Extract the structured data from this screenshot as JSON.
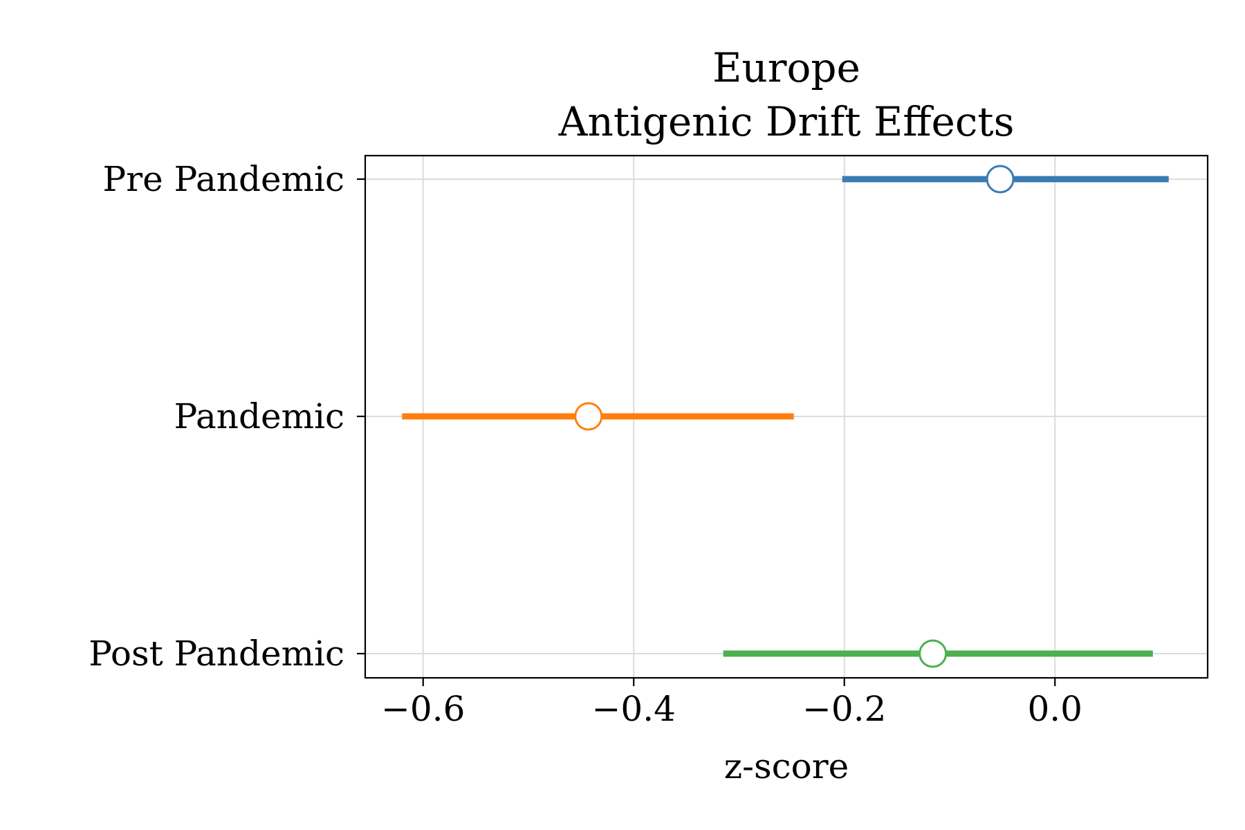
{
  "chart_data": {
    "type": "forest",
    "title_lines": [
      "Europe",
      "Antigenic Drift Effects"
    ],
    "xlabel": "z-score",
    "xlim": [
      -0.655,
      0.145
    ],
    "xticks": [
      -0.6,
      -0.4,
      -0.2,
      0.0
    ],
    "xtick_labels": [
      "−0.6",
      "−0.4",
      "−0.2",
      "0.0"
    ],
    "grid": true,
    "categories": [
      "Pre Pandemic",
      "Pandemic",
      "Post Pandemic"
    ],
    "series": [
      {
        "category": "Pre Pandemic",
        "estimate": -0.052,
        "ci_low": -0.202,
        "ci_high": 0.108,
        "color": "#3a7ab5"
      },
      {
        "category": "Pandemic",
        "estimate": -0.443,
        "ci_low": -0.62,
        "ci_high": -0.248,
        "color": "#ff7f0e"
      },
      {
        "category": "Post Pandemic",
        "estimate": -0.116,
        "ci_low": -0.315,
        "ci_high": 0.093,
        "color": "#4caf50"
      }
    ]
  }
}
